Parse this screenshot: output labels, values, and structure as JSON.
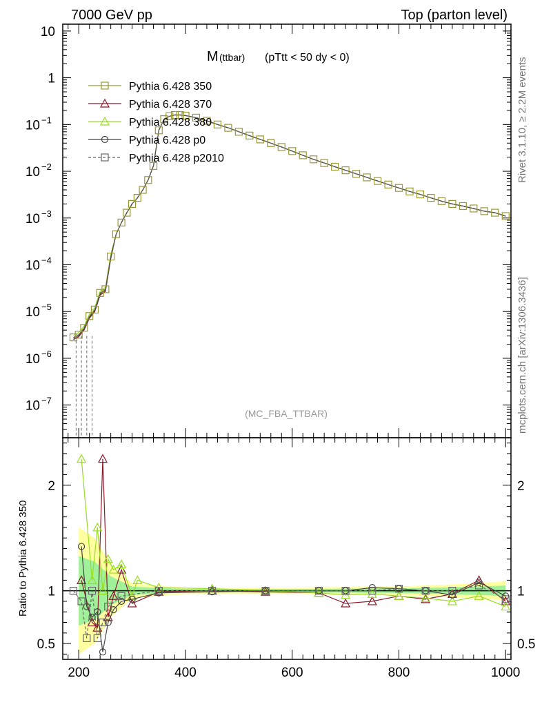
{
  "header": {
    "left": "7000 GeV pp",
    "right": "Top (parton level)"
  },
  "side_labels": {
    "rivet": "Rivet 3.1.10, ≥ 2.2M events",
    "mcplots": "mcplots.cern.ch [arXiv:1306.3436]"
  },
  "plot_title": {
    "main": "M",
    "sub": "(ttbar)",
    "cuts": "(pTtt < 50 dy < 0)"
  },
  "analysis_label": "(MC_FBA_TTBAR)",
  "ratio_ylabel": "Ratio to Pythia 6.428 350",
  "chart_data": {
    "type": "line",
    "x_ticks": [
      "200",
      "400",
      "600",
      "800",
      "1000"
    ],
    "main_y_scale": "log",
    "main_ylim": [
      2e-08,
      14
    ],
    "main_y_ticks": [
      {
        "v": 10,
        "mant": "10",
        "exp": ""
      },
      {
        "v": 1,
        "mant": "1",
        "exp": ""
      },
      {
        "v": 0.1,
        "mant": "10",
        "exp": "−1"
      },
      {
        "v": 0.01,
        "mant": "10",
        "exp": "−2"
      },
      {
        "v": 0.001,
        "mant": "10",
        "exp": "−3"
      },
      {
        "v": 0.0001,
        "mant": "10",
        "exp": "−4"
      },
      {
        "v": 1e-05,
        "mant": "10",
        "exp": "−5"
      },
      {
        "v": 1e-06,
        "mant": "10",
        "exp": "−6"
      },
      {
        "v": 1e-07,
        "mant": "10",
        "exp": "−7"
      }
    ],
    "xlim": [
      170,
      1010
    ],
    "ratio_ylim": [
      0.35,
      2.45
    ],
    "ratio_y_ticks": [
      "0.5",
      "1",
      "2"
    ],
    "series": [
      {
        "name": "Pythia 6.428 350",
        "color": "#999933",
        "marker": "square",
        "dash": false
      },
      {
        "name": "Pythia 6.428 370",
        "color": "#8b1a2b",
        "marker": "triangle",
        "dash": false
      },
      {
        "name": "Pythia 6.428 380",
        "color": "#99dd22",
        "marker": "triangle",
        "dash": false
      },
      {
        "name": "Pythia 6.428 p0",
        "color": "#444444",
        "marker": "circle",
        "dash": false
      },
      {
        "name": "Pythia 6.428 p2010",
        "color": "#666666",
        "marker": "square",
        "dash": true
      }
    ],
    "main_points": [
      [
        190,
        2.8e-06
      ],
      [
        200,
        3.2e-06
      ],
      [
        210,
        4.5e-06
      ],
      [
        220,
        8e-06
      ],
      [
        230,
        1.1e-05
      ],
      [
        240,
        2.5e-05
      ],
      [
        250,
        3e-05
      ],
      [
        260,
        0.00015
      ],
      [
        270,
        0.00045
      ],
      [
        280,
        0.0008
      ],
      [
        290,
        0.0013
      ],
      [
        300,
        0.002
      ],
      [
        310,
        0.0027
      ],
      [
        320,
        0.004
      ],
      [
        330,
        0.0065
      ],
      [
        340,
        0.013
      ],
      [
        350,
        0.075
      ],
      [
        360,
        0.13
      ],
      [
        370,
        0.15
      ],
      [
        380,
        0.16
      ],
      [
        390,
        0.16
      ],
      [
        400,
        0.155
      ],
      [
        420,
        0.14
      ],
      [
        440,
        0.12
      ],
      [
        460,
        0.1
      ],
      [
        480,
        0.085
      ],
      [
        500,
        0.07
      ],
      [
        520,
        0.058
      ],
      [
        540,
        0.048
      ],
      [
        560,
        0.04
      ],
      [
        580,
        0.033
      ],
      [
        600,
        0.027
      ],
      [
        620,
        0.022
      ],
      [
        640,
        0.018
      ],
      [
        660,
        0.015
      ],
      [
        680,
        0.0125
      ],
      [
        700,
        0.0105
      ],
      [
        720,
        0.0088
      ],
      [
        740,
        0.0074
      ],
      [
        760,
        0.0062
      ],
      [
        780,
        0.0052
      ],
      [
        800,
        0.0044
      ],
      [
        820,
        0.0037
      ],
      [
        840,
        0.0032
      ],
      [
        860,
        0.0027
      ],
      [
        880,
        0.0023
      ],
      [
        900,
        0.002
      ],
      [
        920,
        0.0018
      ],
      [
        940,
        0.0016
      ],
      [
        960,
        0.0014
      ],
      [
        980,
        0.0013
      ],
      [
        1000,
        0.0011
      ]
    ],
    "ratio_series": [
      {
        "name": "Pythia 6.428 370",
        "points": [
          [
            205,
            1.1
          ],
          [
            225,
            0.7
          ],
          [
            235,
            0.65
          ],
          [
            245,
            2.25
          ],
          [
            255,
            0.75
          ],
          [
            265,
            0.95
          ],
          [
            280,
            1.2
          ],
          [
            300,
            0.88
          ],
          [
            350,
            0.99
          ],
          [
            450,
            1.0
          ],
          [
            550,
            0.99
          ],
          [
            650,
            0.98
          ],
          [
            700,
            0.88
          ],
          [
            750,
            0.9
          ],
          [
            800,
            0.95
          ],
          [
            850,
            0.92
          ],
          [
            900,
            0.97
          ],
          [
            950,
            1.1
          ],
          [
            1000,
            0.9
          ]
        ]
      },
      {
        "name": "Pythia 6.428 380",
        "points": [
          [
            205,
            2.25
          ],
          [
            225,
            1.1
          ],
          [
            235,
            1.6
          ],
          [
            245,
            1.0
          ],
          [
            255,
            1.3
          ],
          [
            265,
            1.2
          ],
          [
            280,
            1.25
          ],
          [
            300,
            0.95
          ],
          [
            310,
            1.1
          ],
          [
            350,
            1.03
          ],
          [
            450,
            1.02
          ],
          [
            550,
            1.0
          ],
          [
            650,
            0.98
          ],
          [
            700,
            0.96
          ],
          [
            750,
            0.97
          ],
          [
            800,
            0.95
          ],
          [
            850,
            0.93
          ],
          [
            900,
            0.9
          ],
          [
            950,
            0.95
          ],
          [
            1000,
            0.85
          ]
        ]
      },
      {
        "name": "Pythia 6.428 p0",
        "points": [
          [
            205,
            1.42
          ],
          [
            215,
            0.85
          ],
          [
            225,
            0.75
          ],
          [
            235,
            0.8
          ],
          [
            245,
            0.42
          ],
          [
            255,
            0.7
          ],
          [
            265,
            0.82
          ],
          [
            280,
            0.9
          ],
          [
            300,
            0.92
          ],
          [
            350,
            0.98
          ],
          [
            450,
            0.99
          ],
          [
            550,
            1.0
          ],
          [
            650,
            1.0
          ],
          [
            700,
            1.0
          ],
          [
            750,
            1.03
          ],
          [
            800,
            1.02
          ],
          [
            850,
            1.0
          ],
          [
            900,
            0.96
          ],
          [
            950,
            1.08
          ],
          [
            1000,
            0.95
          ]
        ]
      },
      {
        "name": "Pythia 6.428 p2010",
        "points": [
          [
            190,
            1.0
          ],
          [
            205,
            0.9
          ],
          [
            215,
            0.55
          ],
          [
            225,
            1.0
          ],
          [
            235,
            0.55
          ],
          [
            245,
            0.7
          ],
          [
            255,
            0.85
          ],
          [
            280,
            0.95
          ],
          [
            350,
            1.0
          ],
          [
            450,
            1.0
          ],
          [
            550,
            1.0
          ],
          [
            650,
            1.0
          ],
          [
            700,
            1.0
          ],
          [
            750,
            1.0
          ],
          [
            800,
            1.02
          ],
          [
            850,
            1.0
          ],
          [
            900,
            1.0
          ],
          [
            950,
            1.05
          ],
          [
            1000,
            0.92
          ]
        ]
      }
    ]
  }
}
